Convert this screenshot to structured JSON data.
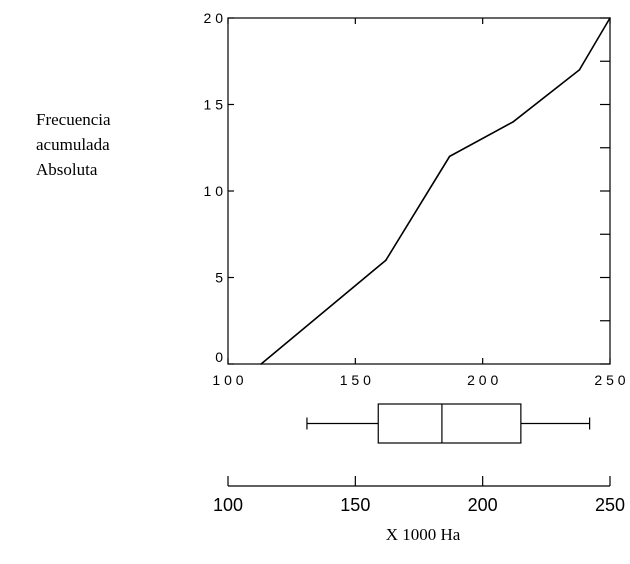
{
  "chart_data": {
    "type": "line",
    "y_label_lines": [
      "Frecuencia",
      "acumulada",
      "Absoluta"
    ],
    "xlabel": "X 1000 Ha",
    "xlim": [
      100,
      250
    ],
    "ylim": [
      0,
      20
    ],
    "x_ticks": [
      "100",
      "150",
      "200",
      "250"
    ],
    "y_ticks": [
      "0",
      "5",
      "1 0",
      "1 5",
      "2 0"
    ],
    "x_ticks_spaced": [
      "1 0 0",
      "1 5 0",
      "2 0 0",
      "2 5 0"
    ],
    "series": [
      {
        "x": [
          113,
          162,
          187,
          212,
          238,
          250
        ],
        "y": [
          0,
          6,
          12,
          14,
          17,
          20
        ]
      }
    ],
    "boxplot": {
      "whisker_low": 131,
      "q1": 159,
      "median": 184,
      "q3": 215,
      "whisker_high": 242
    },
    "grid": false
  }
}
